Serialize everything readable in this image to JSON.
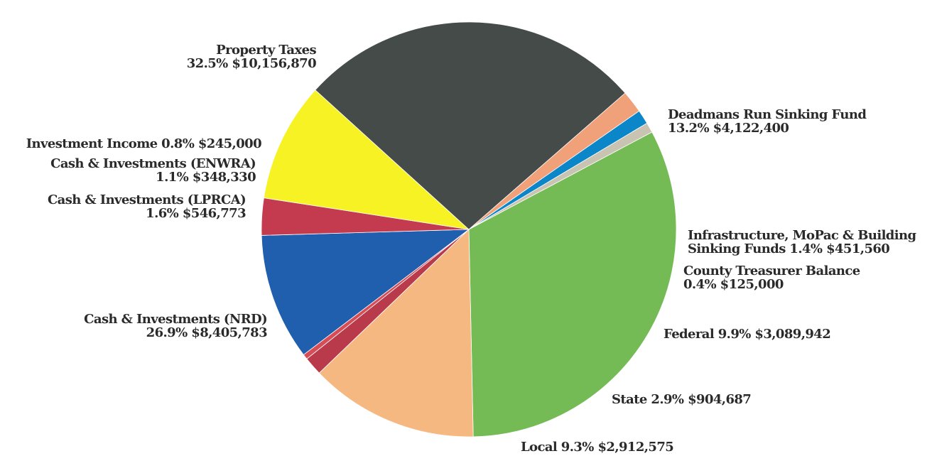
{
  "chart_data": {
    "type": "pie",
    "slices": [
      {
        "label": "Property Taxes",
        "percent": 32.5,
        "value": 10156870,
        "percent_text": "32.5%",
        "amount_text": "$10,156,870",
        "color": "#74bb56"
      },
      {
        "label": "Deadmans Run Sinking Fund",
        "percent": 13.2,
        "value": 4122400,
        "percent_text": "13.2%",
        "amount_text": "$4,122,400",
        "color": "#f5b880"
      },
      {
        "label": "Infrastructure, MoPac & Building Sinking Funds",
        "percent": 1.4,
        "value": 451560,
        "percent_text": "1.4%",
        "amount_text": "$451,560",
        "color": "#b83a4b"
      },
      {
        "label": "County Treasurer Balance",
        "percent": 0.4,
        "value": 125000,
        "percent_text": "0.4%",
        "amount_text": "$125,000",
        "color": "#d84c55"
      },
      {
        "label": "Federal",
        "percent": 9.9,
        "value": 3089942,
        "percent_text": "9.9%",
        "amount_text": "$3,089,942",
        "color": "#1f5fae"
      },
      {
        "label": "State",
        "percent": 2.9,
        "value": 904687,
        "percent_text": "2.9%",
        "amount_text": "$904,687",
        "color": "#c43b4f"
      },
      {
        "label": "Local",
        "percent": 9.3,
        "value": 2912575,
        "percent_text": "9.3%",
        "amount_text": "$2,912,575",
        "color": "#f7f224"
      },
      {
        "label": "Cash & Investments (NRD)",
        "percent": 26.9,
        "value": 8405783,
        "percent_text": "26.9%",
        "amount_text": "$8,405,783",
        "color": "#454b48"
      },
      {
        "label": "Cash & Investments (LPRCA)",
        "percent": 1.6,
        "value": 546773,
        "percent_text": "1.6%",
        "amount_text": "$546,773",
        "color": "#f0a179"
      },
      {
        "label": "Cash & Investments (ENWRA)",
        "percent": 1.1,
        "value": 348330,
        "percent_text": "1.1%",
        "amount_text": "$348,330",
        "color": "#0b86c9"
      },
      {
        "label": "Investment Income",
        "percent": 0.8,
        "value": 245000,
        "percent_text": "0.8%",
        "amount_text": "$245,000",
        "color": "#c9c3b2"
      }
    ]
  },
  "labels": {
    "property_taxes": {
      "line1": "Property Taxes",
      "line2": "32.5%  $10,156,870"
    },
    "deadmans_run": {
      "line1": "Deadmans Run Sinking Fund",
      "line2": "13.2% $4,122,400"
    },
    "infrastructure": {
      "line1": "Infrastructure, MoPac & Building",
      "line2": "Sinking Funds 1.4% $451,560"
    },
    "county_treasurer": {
      "line1": "County Treasurer Balance",
      "line2": "0.4% $125,000"
    },
    "federal": {
      "line1": "Federal 9.9% $3,089,942"
    },
    "state": {
      "line1": "State 2.9% $904,687"
    },
    "local": {
      "line1": "Local 9.3% $2,912,575"
    },
    "cash_nrd": {
      "line1": "Cash & Investments (NRD)",
      "line2": "26.9% $8,405,783"
    },
    "cash_lprca": {
      "line1": "Cash & Investments (LPRCA)",
      "line2": "1.6% $546,773"
    },
    "cash_enwra": {
      "line1": "Cash & Investments (ENWRA)",
      "line2": "1.1% $348,330"
    },
    "investment_income": {
      "line1": "Investment Income 0.8% $245,000"
    }
  }
}
